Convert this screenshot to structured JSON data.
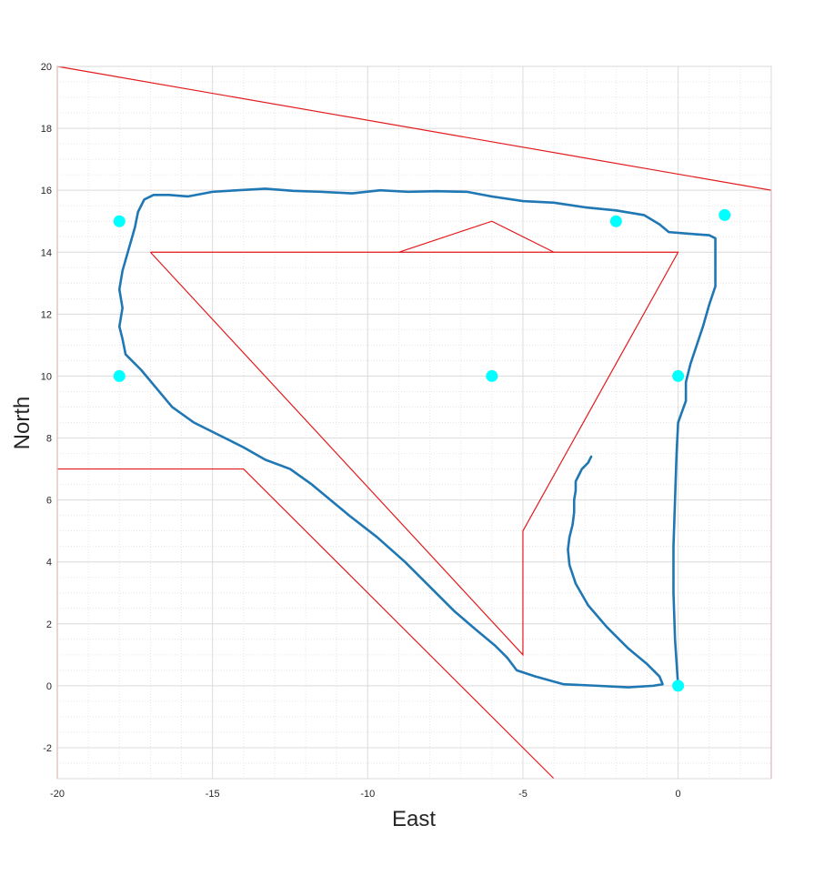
{
  "chart_data": {
    "type": "line",
    "xlabel": "East",
    "ylabel": "North",
    "xlim": [
      -20,
      3
    ],
    "ylim": [
      -3,
      20
    ],
    "x_ticks": [
      -20,
      -15,
      -10,
      -5,
      0
    ],
    "y_ticks": [
      -2,
      0,
      2,
      4,
      6,
      8,
      10,
      12,
      14,
      16,
      18,
      20
    ],
    "x_tick_labels": [
      "-20",
      "-15",
      "-10",
      "-5",
      "0"
    ],
    "y_tick_labels": [
      "-2",
      "0",
      "2",
      "4",
      "6",
      "8",
      "10",
      "12",
      "14",
      "16",
      "18",
      "20"
    ],
    "grid": true,
    "minor_grid": true,
    "colors": {
      "boundary": "#e31a1c",
      "trajectory": "#1f77b4",
      "waypoint": "#00ffff"
    },
    "boundaries": [
      {
        "points": [
          [
            -20,
            -3
          ],
          [
            -20,
            20
          ],
          [
            3,
            16
          ],
          [
            3,
            -3
          ]
        ]
      },
      {
        "points": [
          [
            -17,
            14
          ],
          [
            0,
            14
          ],
          [
            -5,
            5
          ],
          [
            -5,
            1
          ],
          [
            -17,
            14
          ]
        ]
      },
      {
        "points": [
          [
            -9,
            14
          ],
          [
            -6,
            15
          ],
          [
            -4,
            14
          ]
        ]
      },
      {
        "points": [
          [
            -20,
            7
          ],
          [
            -14,
            7
          ],
          [
            -4,
            -3
          ]
        ]
      }
    ],
    "waypoints": [
      [
        -18,
        15
      ],
      [
        -2,
        15
      ],
      [
        1.5,
        15.2
      ],
      [
        -18,
        10
      ],
      [
        -6,
        10
      ],
      [
        0,
        10
      ],
      [
        0,
        0
      ]
    ],
    "trajectory": [
      [
        -2.8,
        7.4
      ],
      [
        -2.9,
        7.2
      ],
      [
        -3.1,
        7.0
      ],
      [
        -3.2,
        6.8
      ],
      [
        -3.3,
        6.6
      ],
      [
        -3.3,
        6.3
      ],
      [
        -3.35,
        6.0
      ],
      [
        -3.35,
        5.6
      ],
      [
        -3.4,
        5.2
      ],
      [
        -3.5,
        4.8
      ],
      [
        -3.55,
        4.4
      ],
      [
        -3.5,
        3.9
      ],
      [
        -3.3,
        3.3
      ],
      [
        -2.9,
        2.6
      ],
      [
        -2.3,
        1.9
      ],
      [
        -1.6,
        1.2
      ],
      [
        -1.0,
        0.7
      ],
      [
        -0.6,
        0.3
      ],
      [
        -0.5,
        0.05
      ],
      [
        -0.8,
        0.0
      ],
      [
        -1.6,
        -0.05
      ],
      [
        -2.6,
        0.0
      ],
      [
        -3.7,
        0.05
      ],
      [
        -4.6,
        0.3
      ],
      [
        -5.2,
        0.5
      ],
      [
        -5.5,
        0.9
      ],
      [
        -5.9,
        1.3
      ],
      [
        -6.5,
        1.8
      ],
      [
        -7.2,
        2.4
      ],
      [
        -8.0,
        3.2
      ],
      [
        -8.8,
        4.0
      ],
      [
        -9.7,
        4.8
      ],
      [
        -10.6,
        5.5
      ],
      [
        -11.2,
        6.0
      ],
      [
        -11.8,
        6.5
      ],
      [
        -12.5,
        7.0
      ],
      [
        -13.3,
        7.3
      ],
      [
        -14.0,
        7.7
      ],
      [
        -14.8,
        8.1
      ],
      [
        -15.6,
        8.5
      ],
      [
        -16.3,
        9.0
      ],
      [
        -16.8,
        9.6
      ],
      [
        -17.3,
        10.2
      ],
      [
        -17.8,
        10.7
      ],
      [
        -17.9,
        11.2
      ],
      [
        -18.0,
        11.6
      ],
      [
        -17.9,
        12.2
      ],
      [
        -18.0,
        12.8
      ],
      [
        -17.9,
        13.4
      ],
      [
        -17.7,
        14.1
      ],
      [
        -17.5,
        14.8
      ],
      [
        -17.4,
        15.3
      ],
      [
        -17.2,
        15.7
      ],
      [
        -16.9,
        15.85
      ],
      [
        -16.4,
        15.85
      ],
      [
        -15.8,
        15.8
      ],
      [
        -15.0,
        15.95
      ],
      [
        -14.2,
        16.0
      ],
      [
        -13.3,
        16.05
      ],
      [
        -12.4,
        15.98
      ],
      [
        -11.5,
        15.95
      ],
      [
        -10.5,
        15.9
      ],
      [
        -9.6,
        16.0
      ],
      [
        -8.7,
        15.95
      ],
      [
        -7.8,
        15.97
      ],
      [
        -6.8,
        15.95
      ],
      [
        -6.0,
        15.8
      ],
      [
        -5.0,
        15.65
      ],
      [
        -4.0,
        15.6
      ],
      [
        -3.0,
        15.45
      ],
      [
        -2.0,
        15.35
      ],
      [
        -1.1,
        15.2
      ],
      [
        -0.6,
        14.9
      ],
      [
        -0.3,
        14.65
      ],
      [
        0.3,
        14.6
      ],
      [
        1.0,
        14.55
      ],
      [
        1.2,
        14.45
      ],
      [
        1.2,
        14.0
      ],
      [
        1.2,
        13.5
      ],
      [
        1.2,
        12.9
      ],
      [
        1.0,
        12.3
      ],
      [
        0.8,
        11.6
      ],
      [
        0.6,
        11.0
      ],
      [
        0.4,
        10.4
      ],
      [
        0.25,
        9.8
      ],
      [
        0.25,
        9.2
      ],
      [
        0.0,
        8.5
      ],
      [
        -0.05,
        7.5
      ],
      [
        -0.1,
        6.0
      ],
      [
        -0.15,
        4.5
      ],
      [
        -0.15,
        3.0
      ],
      [
        -0.1,
        1.5
      ],
      [
        0.0,
        0.0
      ]
    ]
  }
}
